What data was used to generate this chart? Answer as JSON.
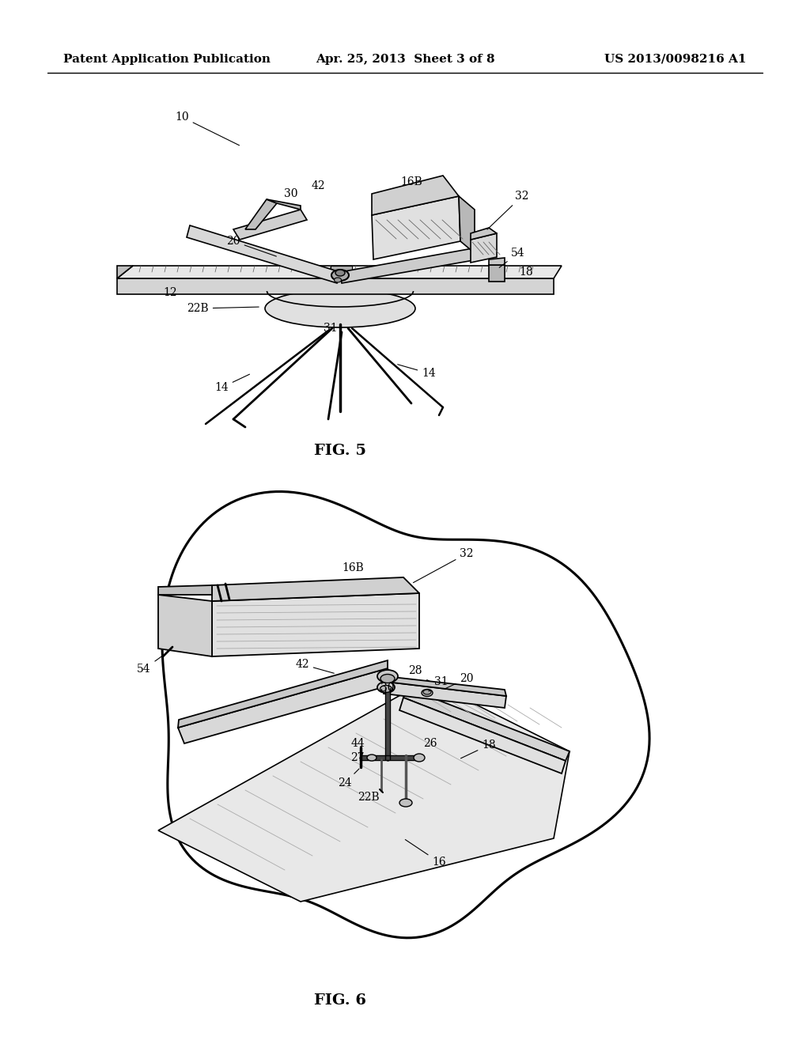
{
  "bg_color": "#ffffff",
  "fig_width": 10.24,
  "fig_height": 13.2,
  "dpi": 100,
  "header": {
    "left": "Patent Application Publication",
    "center": "Apr. 25, 2013  Sheet 3 of 8",
    "right": "US 2013/0098216 A1",
    "fontsize": 11
  }
}
